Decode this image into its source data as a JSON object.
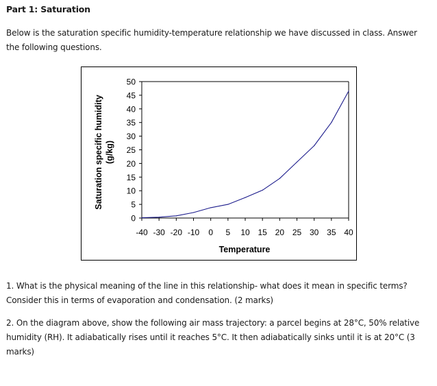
{
  "heading": "Part 1: Saturation",
  "intro": [
    "Below is the saturation specific humidity-temperature relationship we have discussed in class.  Answer",
    "the following questions."
  ],
  "chart_data": {
    "type": "line",
    "title": "",
    "xlabel": "Temperature",
    "ylabel_lines": [
      "Saturation specific humidity",
      "(g/kg)"
    ],
    "x_categories": [
      "-40",
      "-30",
      "-20",
      "-10",
      "0",
      "5",
      "10",
      "15",
      "20",
      "25",
      "30",
      "35",
      "40"
    ],
    "y_ticks": [
      0,
      5,
      10,
      15,
      20,
      25,
      30,
      35,
      40,
      45,
      50
    ],
    "ylim": [
      0,
      50
    ],
    "grid": false,
    "legend": "none",
    "series": [
      {
        "name": "Saturation specific humidity",
        "color": "#1c1c8c",
        "values": [
          0.1,
          0.3,
          0.8,
          2.0,
          3.8,
          5.0,
          7.5,
          10.2,
          14.5,
          20.5,
          26.5,
          35.0,
          46.5
        ]
      }
    ]
  },
  "questions": {
    "q1": [
      "1. What is the physical meaning of the line in this relationship- what does it mean in specific terms?",
      "Consider this in terms of evaporation and condensation. (2 marks)"
    ],
    "q2": [
      "2. On the diagram above, show the following air mass trajectory:  a parcel begins at 28°C, 50% relative",
      "humidity (RH).  It adiabatically rises until it reaches 5°C.  It then adiabatically sinks until it is at 20°C (3",
      "marks)"
    ]
  }
}
